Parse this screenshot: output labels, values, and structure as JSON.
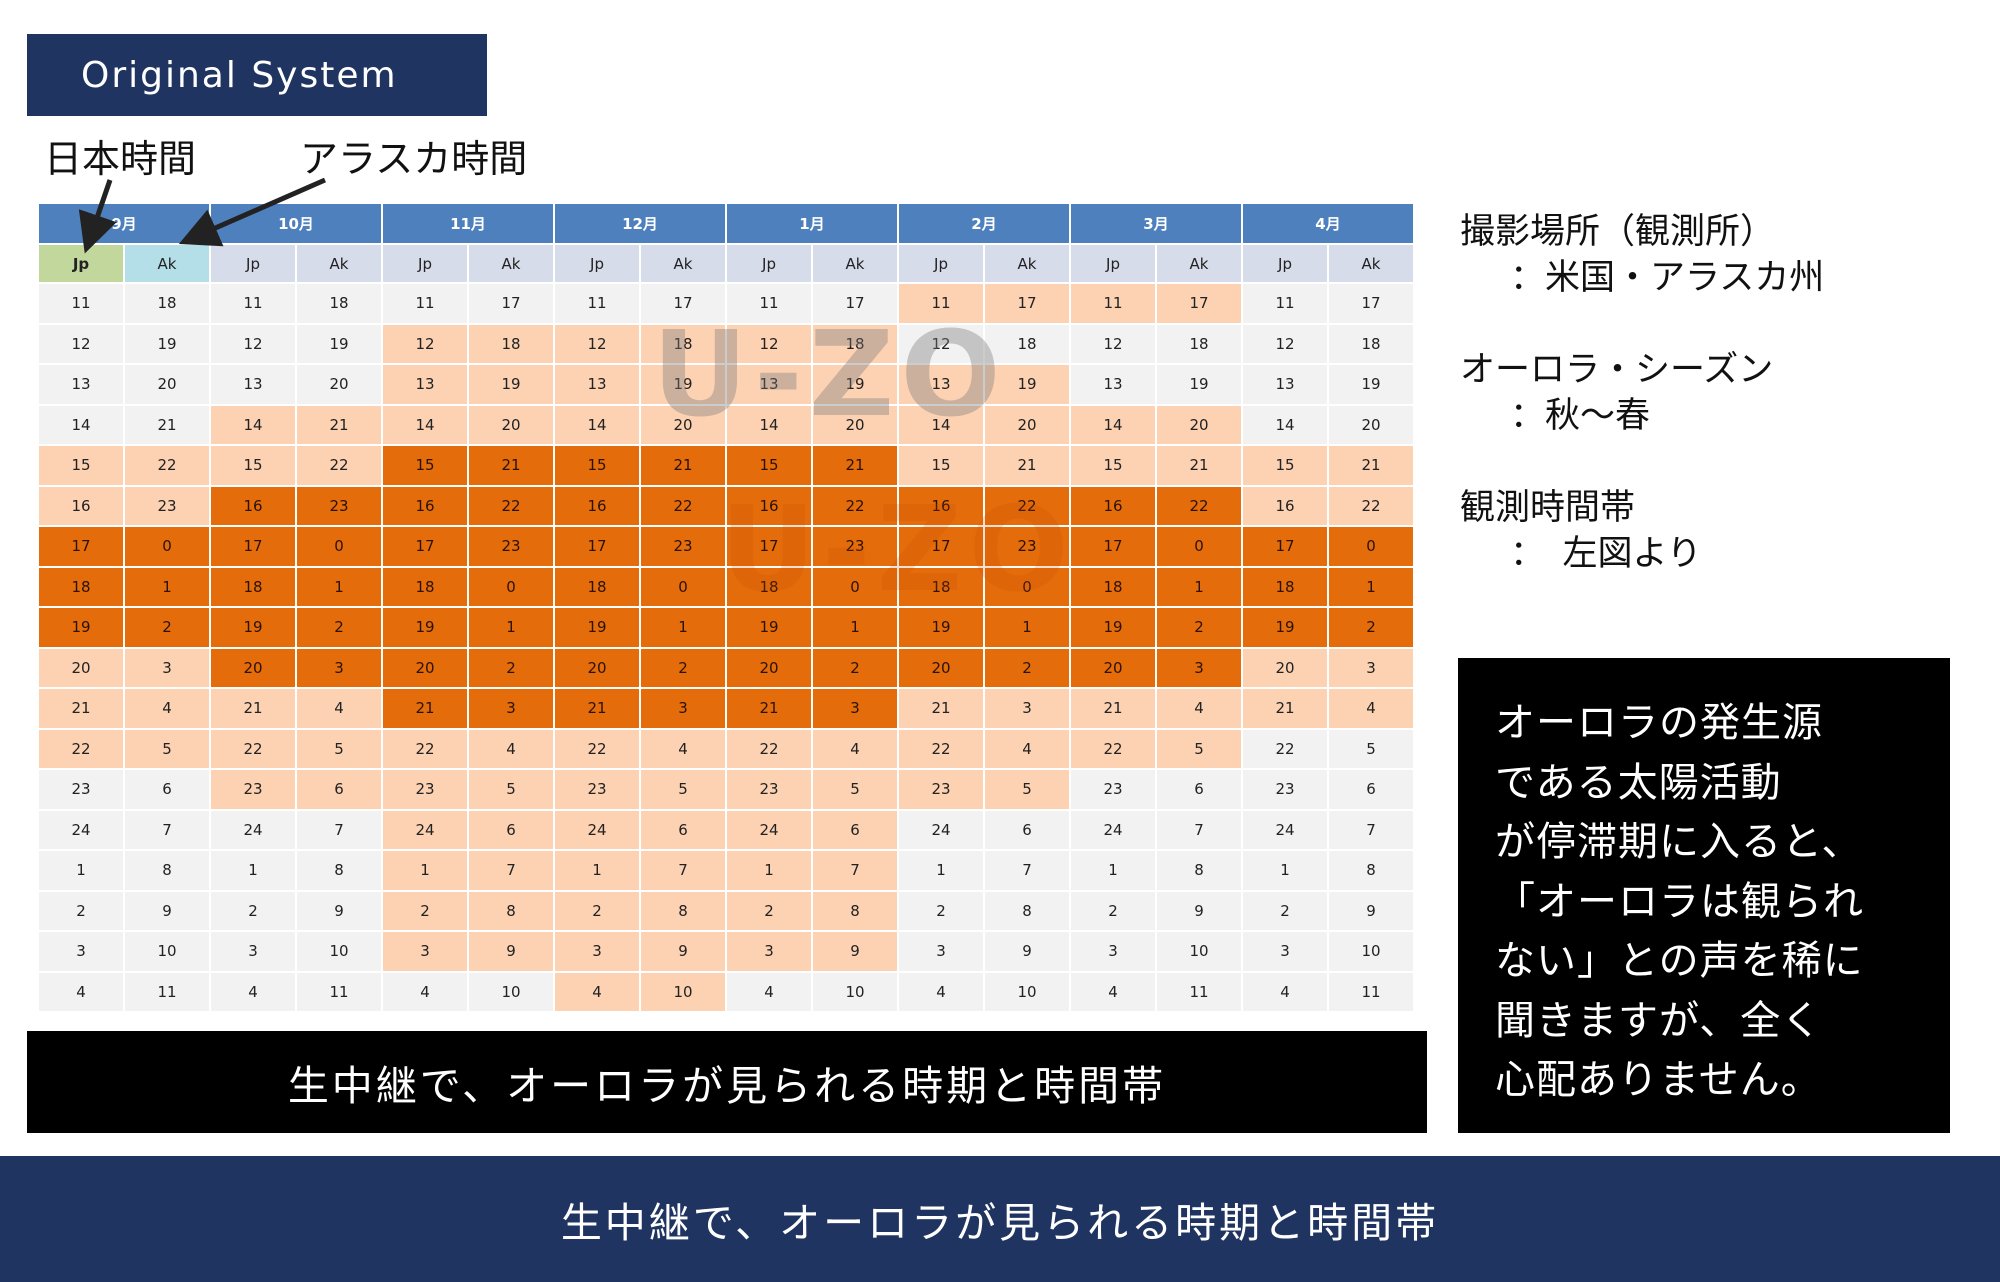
{
  "badge": "Original System",
  "callouts": {
    "japan": "日本時間",
    "alaska": "アラスカ時間"
  },
  "watermark": "U-ZO",
  "table": {
    "months": [
      "9月",
      "10月",
      "11月",
      "12月",
      "1月",
      "2月",
      "3月",
      "4月"
    ],
    "tz": [
      "Jp",
      "Ak"
    ],
    "rows": [
      [
        "11",
        "18",
        "11",
        "18",
        "11",
        "17",
        "11",
        "17",
        "11",
        "17",
        "11",
        "17",
        "11",
        "17",
        "11",
        "17"
      ],
      [
        "12",
        "19",
        "12",
        "19",
        "12",
        "18",
        "12",
        "18",
        "12",
        "18",
        "12",
        "18",
        "12",
        "18",
        "12",
        "18"
      ],
      [
        "13",
        "20",
        "13",
        "20",
        "13",
        "19",
        "13",
        "19",
        "13",
        "19",
        "13",
        "19",
        "13",
        "19",
        "13",
        "19"
      ],
      [
        "14",
        "21",
        "14",
        "21",
        "14",
        "20",
        "14",
        "20",
        "14",
        "20",
        "14",
        "20",
        "14",
        "20",
        "14",
        "20"
      ],
      [
        "15",
        "22",
        "15",
        "22",
        "15",
        "21",
        "15",
        "21",
        "15",
        "21",
        "15",
        "21",
        "15",
        "21",
        "15",
        "21"
      ],
      [
        "16",
        "23",
        "16",
        "23",
        "16",
        "22",
        "16",
        "22",
        "16",
        "22",
        "16",
        "22",
        "16",
        "22",
        "16",
        "22"
      ],
      [
        "17",
        "0",
        "17",
        "0",
        "17",
        "23",
        "17",
        "23",
        "17",
        "23",
        "17",
        "23",
        "17",
        "0",
        "17",
        "0"
      ],
      [
        "18",
        "1",
        "18",
        "1",
        "18",
        "0",
        "18",
        "0",
        "18",
        "0",
        "18",
        "0",
        "18",
        "1",
        "18",
        "1"
      ],
      [
        "19",
        "2",
        "19",
        "2",
        "19",
        "1",
        "19",
        "1",
        "19",
        "1",
        "19",
        "1",
        "19",
        "2",
        "19",
        "2"
      ],
      [
        "20",
        "3",
        "20",
        "3",
        "20",
        "2",
        "20",
        "2",
        "20",
        "2",
        "20",
        "2",
        "20",
        "3",
        "20",
        "3"
      ],
      [
        "21",
        "4",
        "21",
        "4",
        "21",
        "3",
        "21",
        "3",
        "21",
        "3",
        "21",
        "3",
        "21",
        "4",
        "21",
        "4"
      ],
      [
        "22",
        "5",
        "22",
        "5",
        "22",
        "4",
        "22",
        "4",
        "22",
        "4",
        "22",
        "4",
        "22",
        "5",
        "22",
        "5"
      ],
      [
        "23",
        "6",
        "23",
        "6",
        "23",
        "5",
        "23",
        "5",
        "23",
        "5",
        "23",
        "5",
        "23",
        "6",
        "23",
        "6"
      ],
      [
        "24",
        "7",
        "24",
        "7",
        "24",
        "6",
        "24",
        "6",
        "24",
        "6",
        "24",
        "6",
        "24",
        "7",
        "24",
        "7"
      ],
      [
        "1",
        "8",
        "1",
        "8",
        "1",
        "7",
        "1",
        "7",
        "1",
        "7",
        "1",
        "7",
        "1",
        "8",
        "1",
        "8"
      ],
      [
        "2",
        "9",
        "2",
        "9",
        "2",
        "8",
        "2",
        "8",
        "2",
        "8",
        "2",
        "8",
        "2",
        "9",
        "2",
        "9"
      ],
      [
        "3",
        "10",
        "3",
        "10",
        "3",
        "9",
        "3",
        "9",
        "3",
        "9",
        "3",
        "9",
        "3",
        "10",
        "3",
        "10"
      ],
      [
        "4",
        "11",
        "4",
        "11",
        "4",
        "10",
        "4",
        "10",
        "4",
        "10",
        "4",
        "10",
        "4",
        "11",
        "4",
        "11"
      ]
    ],
    "levels": [
      [
        0,
        0,
        0,
        0,
        0,
        1,
        1,
        0
      ],
      [
        0,
        0,
        1,
        1,
        1,
        0,
        0,
        0
      ],
      [
        0,
        0,
        1,
        1,
        1,
        1,
        0,
        0
      ],
      [
        0,
        1,
        1,
        1,
        1,
        1,
        1,
        0
      ],
      [
        1,
        1,
        2,
        2,
        2,
        1,
        1,
        1
      ],
      [
        1,
        2,
        2,
        2,
        2,
        2,
        2,
        1
      ],
      [
        2,
        2,
        2,
        2,
        2,
        2,
        2,
        2
      ],
      [
        2,
        2,
        2,
        2,
        2,
        2,
        2,
        2
      ],
      [
        2,
        2,
        2,
        2,
        2,
        2,
        2,
        2
      ],
      [
        1,
        2,
        2,
        2,
        2,
        2,
        2,
        1
      ],
      [
        1,
        1,
        2,
        2,
        2,
        1,
        1,
        1
      ],
      [
        1,
        1,
        1,
        1,
        1,
        1,
        1,
        0
      ],
      [
        0,
        1,
        1,
        1,
        1,
        1,
        0,
        0
      ],
      [
        0,
        0,
        1,
        1,
        1,
        0,
        0,
        0
      ],
      [
        0,
        0,
        1,
        1,
        1,
        0,
        0,
        0
      ],
      [
        0,
        0,
        1,
        1,
        1,
        0,
        0,
        0
      ],
      [
        0,
        0,
        1,
        1,
        1,
        0,
        0,
        0
      ],
      [
        0,
        0,
        0,
        1,
        0,
        0,
        0,
        0
      ]
    ]
  },
  "caption": "生中継で、オーロラが見られる時期と時間帯",
  "info": [
    {
      "title": "撮影場所（観測所）",
      "value": "：米国・アラスカ州"
    },
    {
      "title": "オーロラ・シーズン",
      "value": "：秋～春"
    },
    {
      "title": "観測時間帯",
      "value": "：　左図より"
    }
  ],
  "note": [
    "オーロラの発生源",
    "である太陽活動",
    "が停滞期に入ると、",
    "「オーロラは観られ",
    "ない」との声を稀に",
    "聞きますが、全く",
    "心配ありません。"
  ],
  "footer": "生中継で、オーロラが見られる時期と時間帯"
}
